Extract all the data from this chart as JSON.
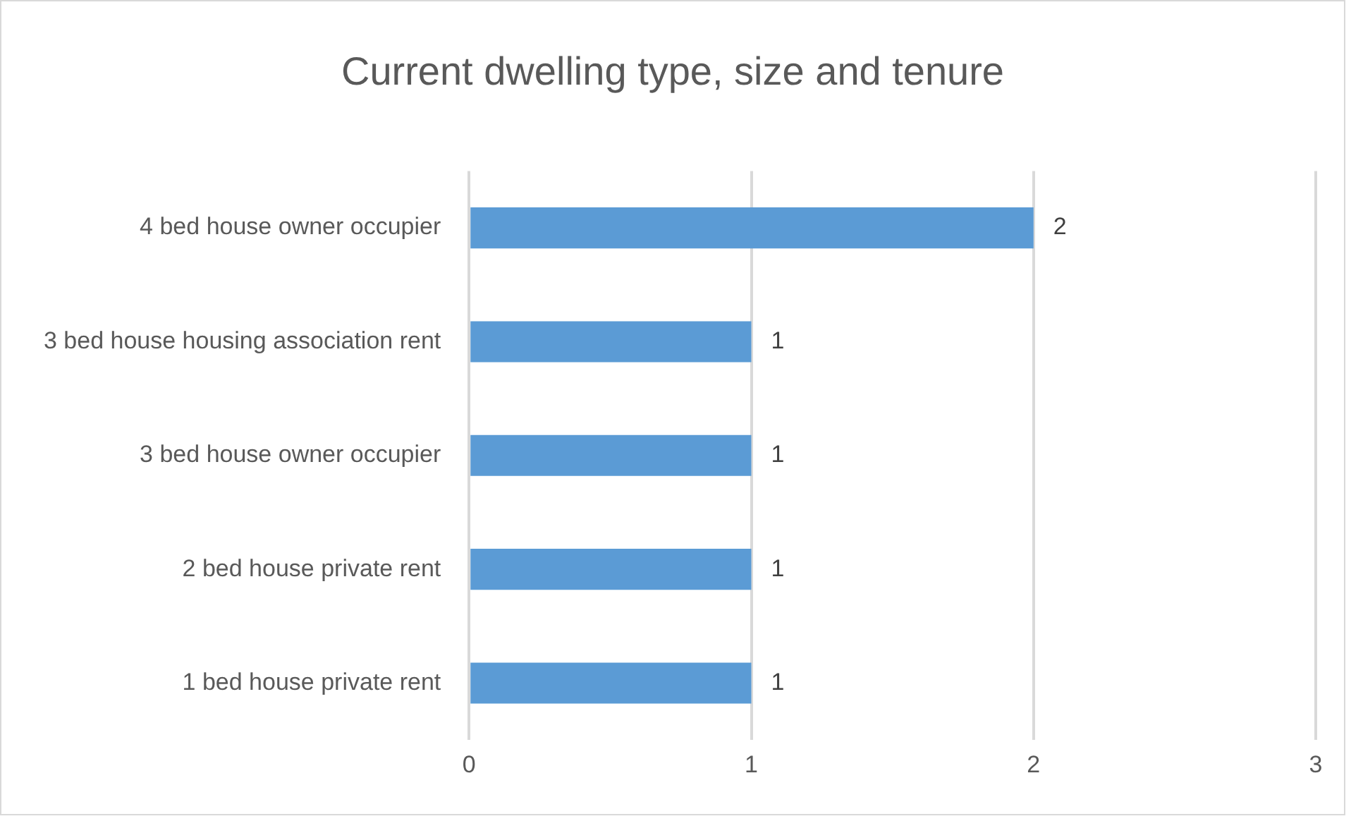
{
  "chart_data": {
    "type": "bar",
    "orientation": "horizontal",
    "title": "Current dwelling type, size and tenure",
    "categories": [
      "4 bed house owner occupier",
      "3 bed house housing association rent",
      "3 bed house owner occupier",
      "2 bed house private rent",
      "1 bed house private rent"
    ],
    "values": [
      2,
      1,
      1,
      1,
      1
    ],
    "color": "#5b9bd5",
    "xlim": [
      0,
      3
    ],
    "xticks": [
      0,
      1,
      2,
      3
    ],
    "grid": "x",
    "data_labels": true
  }
}
